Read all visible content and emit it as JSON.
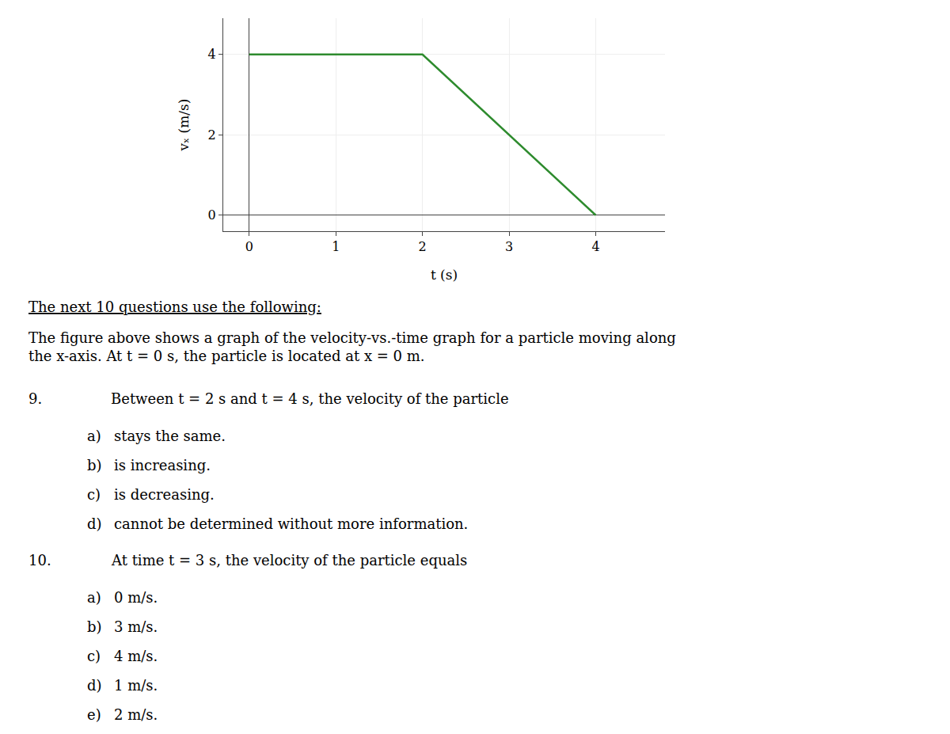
{
  "chart_data": {
    "type": "line",
    "x": [
      0,
      2,
      4
    ],
    "values": [
      4,
      4,
      0
    ],
    "color": "#2e8b2e",
    "xlim": [
      -0.3,
      4.8
    ],
    "ylim": [
      -0.4,
      4.9
    ],
    "xticks": [
      0,
      1,
      2,
      3,
      4
    ],
    "yticks": [
      0,
      2,
      4
    ],
    "grid": true,
    "x_label": "t (s)",
    "y_label": "vₓ (m/s)",
    "annotations": {
      "heading": "The next 10 questions use the following:",
      "paragraph": [
        "The figure above shows a graph of the velocity-vs.-time graph for a particle moving along",
        "the x-axis. At t = 0 s, the particle is located at x = 0 m."
      ],
      "questions": [
        {
          "number": "9.",
          "text": "Between t = 2 s and t = 4 s, the velocity of the particle",
          "choices": [
            [
              "a)",
              "stays the same."
            ],
            [
              "b)",
              "is increasing."
            ],
            [
              "c)",
              "is decreasing."
            ],
            [
              "d)",
              "cannot be determined without more information."
            ]
          ]
        },
        {
          "number": "10.",
          "text": "At time t = 3 s, the velocity of the particle equals",
          "choices": [
            [
              "a)",
              "0 m/s."
            ],
            [
              "b)",
              "3 m/s."
            ],
            [
              "c)",
              "4 m/s."
            ],
            [
              "d)",
              "1 m/s."
            ],
            [
              "e)",
              "2 m/s."
            ]
          ]
        }
      ]
    }
  }
}
